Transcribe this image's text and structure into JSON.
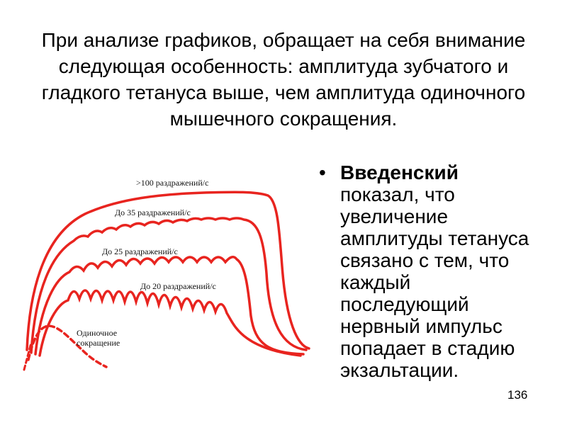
{
  "slide": {
    "title": "При анализе графиков, обращает на себя внимание следующая особенность: амплитуда зубчатого и гладкого тетануса выше, чем амплитуда одиночного мышечного сокращения.",
    "bullet": {
      "marker": "•",
      "bold_text": "Введенский",
      "text": " показал, что увеличение амплитуды тетануса связано с тем, что каждый последующий нервный импульс попадает в стадию экзальтации."
    },
    "page_number": "136"
  },
  "figure": {
    "labels": {
      "curve_100": ">100 раздражений/с",
      "curve_35": "До 35 раздражений/с",
      "curve_25": "До 25 раздражений/с",
      "curve_20": "До 20 раздражений/с",
      "single_line1": "Одиночное",
      "single_line2": "сокращение"
    },
    "colors": {
      "curve": "#e8241f",
      "text": "#111111"
    }
  }
}
